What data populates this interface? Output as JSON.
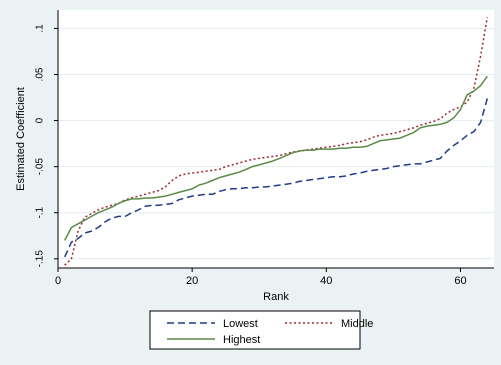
{
  "chart_data": {
    "type": "line",
    "title": "",
    "xlabel": "Rank",
    "ylabel": "Estimated Coefficient",
    "xlim": [
      0,
      65
    ],
    "ylim": [
      -0.16,
      0.12
    ],
    "xticks": [
      0,
      20,
      40,
      60
    ],
    "xtick_labels": [
      "0",
      "20",
      "40",
      "60"
    ],
    "yticks": [
      -0.15,
      -0.1,
      -0.05,
      0,
      0.05,
      0.1
    ],
    "ytick_labels": [
      "-.15",
      "-.1",
      "-.05",
      "0",
      ".05",
      ".1"
    ],
    "grid": "horizontal",
    "legend_position": "bottom",
    "colors": {
      "plot_bg": "#ffffff",
      "outer_bg": "#eaf2f3",
      "grid": "#e3ecee",
      "axis": "#000000"
    },
    "series": [
      {
        "name": "Lowest",
        "color": "#1f3c88",
        "dash": "7,4",
        "x": [
          1,
          2,
          3,
          4,
          5,
          6,
          7,
          8,
          9,
          10,
          11,
          12,
          13,
          14,
          15,
          16,
          17,
          18,
          19,
          20,
          21,
          22,
          23,
          24,
          25,
          26,
          27,
          28,
          29,
          30,
          31,
          32,
          33,
          34,
          35,
          36,
          37,
          38,
          39,
          40,
          41,
          42,
          43,
          44,
          45,
          46,
          47,
          48,
          49,
          50,
          51,
          52,
          53,
          54,
          55,
          56,
          57,
          58,
          59,
          60,
          61,
          62,
          63,
          64
        ],
        "y": [
          -0.148,
          -0.132,
          -0.128,
          -0.122,
          -0.12,
          -0.116,
          -0.11,
          -0.106,
          -0.104,
          -0.104,
          -0.1,
          -0.097,
          -0.093,
          -0.092,
          -0.092,
          -0.091,
          -0.09,
          -0.086,
          -0.084,
          -0.082,
          -0.081,
          -0.08,
          -0.08,
          -0.077,
          -0.075,
          -0.074,
          -0.074,
          -0.073,
          -0.073,
          -0.072,
          -0.072,
          -0.071,
          -0.07,
          -0.069,
          -0.068,
          -0.066,
          -0.065,
          -0.064,
          -0.063,
          -0.062,
          -0.061,
          -0.061,
          -0.06,
          -0.058,
          -0.057,
          -0.055,
          -0.054,
          -0.053,
          -0.052,
          -0.05,
          -0.049,
          -0.048,
          -0.047,
          -0.047,
          -0.045,
          -0.043,
          -0.041,
          -0.033,
          -0.027,
          -0.022,
          -0.016,
          -0.012,
          -0.002,
          0.024
        ]
      },
      {
        "name": "Middle",
        "color": "#a0282d",
        "dash": "2,2.5",
        "x": [
          1,
          2,
          3,
          4,
          5,
          6,
          7,
          8,
          9,
          10,
          11,
          12,
          13,
          14,
          15,
          16,
          17,
          18,
          19,
          20,
          21,
          22,
          23,
          24,
          25,
          26,
          27,
          28,
          29,
          30,
          31,
          32,
          33,
          34,
          35,
          36,
          37,
          38,
          39,
          40,
          41,
          42,
          43,
          44,
          45,
          46,
          47,
          48,
          49,
          50,
          51,
          52,
          53,
          54,
          55,
          56,
          57,
          58,
          59,
          60,
          61,
          62,
          63,
          64
        ],
        "y": [
          -0.157,
          -0.15,
          -0.12,
          -0.105,
          -0.101,
          -0.097,
          -0.094,
          -0.092,
          -0.09,
          -0.086,
          -0.084,
          -0.082,
          -0.08,
          -0.078,
          -0.076,
          -0.072,
          -0.065,
          -0.06,
          -0.058,
          -0.057,
          -0.056,
          -0.055,
          -0.054,
          -0.053,
          -0.05,
          -0.048,
          -0.046,
          -0.044,
          -0.042,
          -0.041,
          -0.04,
          -0.039,
          -0.038,
          -0.036,
          -0.034,
          -0.033,
          -0.032,
          -0.031,
          -0.03,
          -0.029,
          -0.028,
          -0.027,
          -0.025,
          -0.024,
          -0.023,
          -0.021,
          -0.018,
          -0.016,
          -0.015,
          -0.014,
          -0.012,
          -0.01,
          -0.008,
          -0.005,
          -0.003,
          -0.001,
          0.002,
          0.008,
          0.012,
          0.015,
          0.02,
          0.035,
          0.07,
          0.112
        ]
      },
      {
        "name": "Highest",
        "color": "#5a8a47",
        "dash": "",
        "x": [
          1,
          2,
          3,
          4,
          5,
          6,
          7,
          8,
          9,
          10,
          11,
          12,
          13,
          14,
          15,
          16,
          17,
          18,
          19,
          20,
          21,
          22,
          23,
          24,
          25,
          26,
          27,
          28,
          29,
          30,
          31,
          32,
          33,
          34,
          35,
          36,
          37,
          38,
          39,
          40,
          41,
          42,
          43,
          44,
          45,
          46,
          47,
          48,
          49,
          50,
          51,
          52,
          53,
          54,
          55,
          56,
          57,
          58,
          59,
          60,
          61,
          62,
          63,
          64
        ],
        "y": [
          -0.13,
          -0.116,
          -0.112,
          -0.108,
          -0.104,
          -0.1,
          -0.097,
          -0.094,
          -0.09,
          -0.087,
          -0.085,
          -0.085,
          -0.084,
          -0.084,
          -0.083,
          -0.082,
          -0.08,
          -0.078,
          -0.076,
          -0.074,
          -0.07,
          -0.068,
          -0.065,
          -0.062,
          -0.06,
          -0.058,
          -0.056,
          -0.053,
          -0.05,
          -0.048,
          -0.046,
          -0.044,
          -0.041,
          -0.038,
          -0.035,
          -0.033,
          -0.032,
          -0.032,
          -0.031,
          -0.031,
          -0.031,
          -0.03,
          -0.03,
          -0.029,
          -0.029,
          -0.028,
          -0.025,
          -0.022,
          -0.021,
          -0.02,
          -0.019,
          -0.016,
          -0.013,
          -0.008,
          -0.006,
          -0.005,
          -0.004,
          -0.002,
          0.003,
          0.012,
          0.028,
          0.032,
          0.038,
          0.048
        ]
      }
    ]
  }
}
